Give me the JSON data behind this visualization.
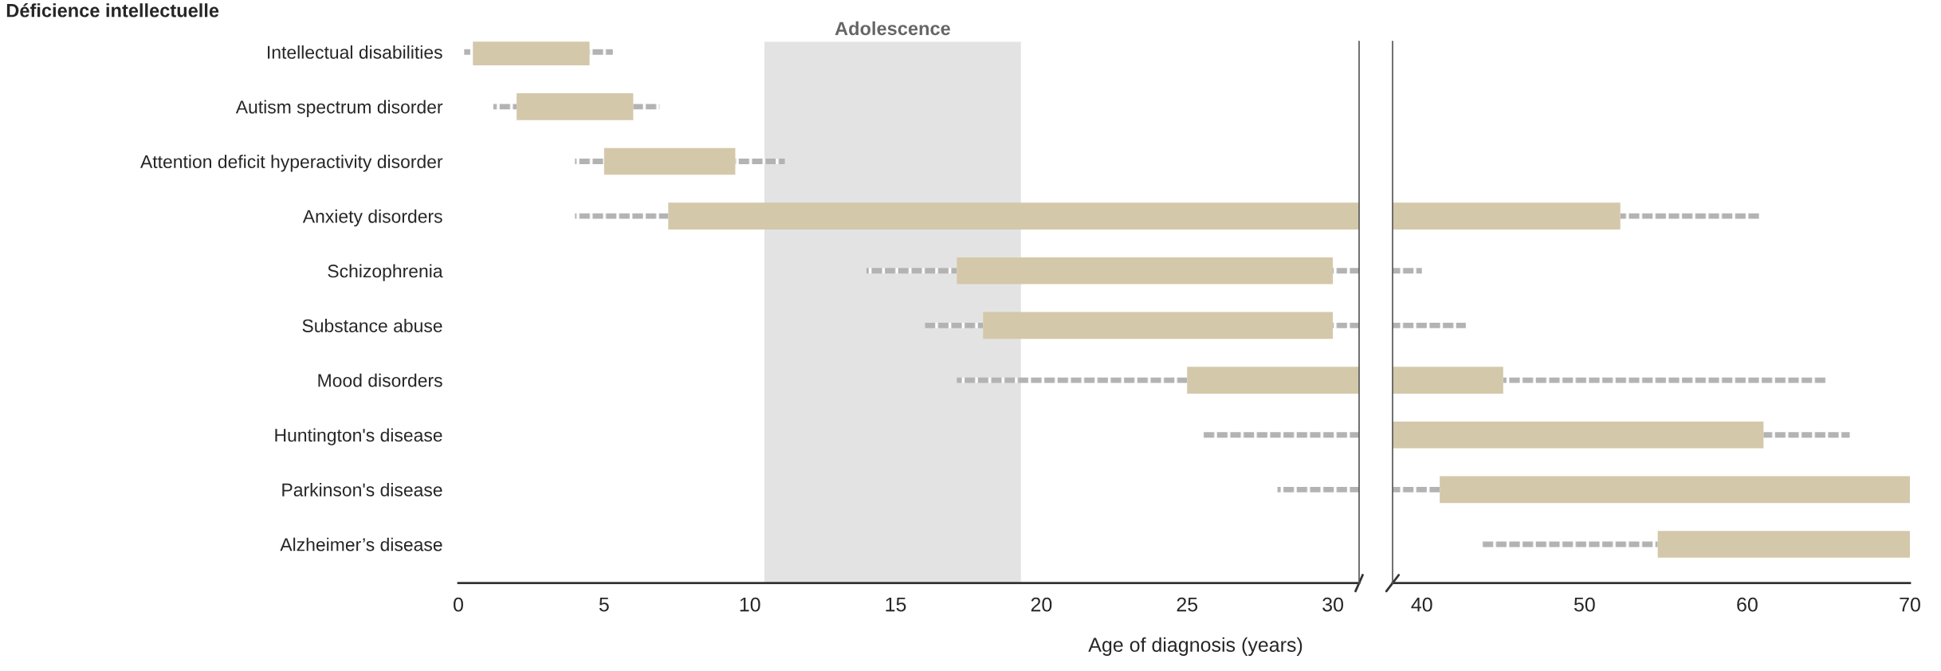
{
  "chart_data": [
    {
      "type": "bar",
      "orientation": "horizontal",
      "xlabel": "Age of diagnosis (years)",
      "categories": [
        "Intellectual disabilities",
        "Autism spectrum disorder",
        "Attention deficit hyperactivity disorder",
        "Anxiety disorders",
        "Schizophrenia",
        "Substance abuse",
        "Mood disorders",
        "Huntington's disease",
        "Parkinson's disease",
        "Alzheimer’s disease"
      ],
      "series": [
        {
          "color": "#b3b3b3",
          "line_style": "dotted",
          "base": [
            0.2,
            1.2,
            4.0,
            4.0,
            14.0,
            16.0,
            17.1,
            25.5,
            28.1,
            null
          ],
          "values": [
            0.3,
            0.8,
            1.0,
            3.2,
            3.1,
            2.0,
            7.9,
            5.4,
            2.8,
            null
          ]
        },
        {
          "color": "#d4c8aa",
          "base": [
            0.5,
            2.0,
            5.0,
            7.2,
            17.1,
            18.0,
            25.0,
            null,
            null,
            null
          ],
          "values": [
            4.0,
            4.0,
            4.5,
            23.7,
            12.9,
            12.0,
            5.9,
            null,
            null,
            null
          ]
        },
        {
          "color": "#b3b3b3",
          "line_style": "dotted",
          "base": [
            4.5,
            6.0,
            9.5,
            null,
            30.0,
            30.0,
            null,
            null,
            null,
            null
          ],
          "values": [
            0.8,
            0.9,
            1.7,
            null,
            0.9,
            0.9,
            null,
            null,
            null,
            null
          ]
        }
      ],
      "xlim": [
        0,
        30.9
      ],
      "xticks": [
        0,
        5,
        10,
        15,
        20,
        25,
        30
      ],
      "bands": [
        {
          "axis": "x",
          "from": 10.5,
          "to": 19.3,
          "label": "Adolescence",
          "color": "#e3e3e3"
        }
      ],
      "annotations": [
        "Déficience intellectuelle"
      ]
    },
    {
      "type": "bar",
      "orientation": "horizontal",
      "categories": [
        null,
        null,
        null,
        null,
        null,
        null,
        null,
        null,
        null,
        null
      ],
      "series": [
        {
          "color": "#b3b3b3",
          "line_style": "dotted",
          "base": [
            null,
            null,
            null,
            null,
            null,
            null,
            null,
            null,
            38.2,
            43.7
          ],
          "values": [
            null,
            null,
            null,
            null,
            null,
            null,
            null,
            null,
            2.9,
            10.8
          ]
        },
        {
          "color": "#d4c8aa",
          "base": [
            null,
            null,
            null,
            38.2,
            null,
            null,
            38.2,
            38.2,
            41.1,
            54.5
          ],
          "values": [
            null,
            null,
            null,
            14.0,
            null,
            null,
            6.8,
            22.8,
            28.9,
            15.5
          ]
        },
        {
          "color": "#b3b3b3",
          "line_style": "dotted",
          "base": [
            null,
            null,
            null,
            52.2,
            38.2,
            38.2,
            45.0,
            61.0,
            null,
            null
          ],
          "values": [
            null,
            null,
            null,
            8.6,
            1.8,
            4.5,
            19.9,
            5.3,
            null,
            null
          ]
        }
      ],
      "xlim": [
        38.2,
        70
      ],
      "xticks": [
        40,
        50,
        60,
        70
      ]
    }
  ]
}
